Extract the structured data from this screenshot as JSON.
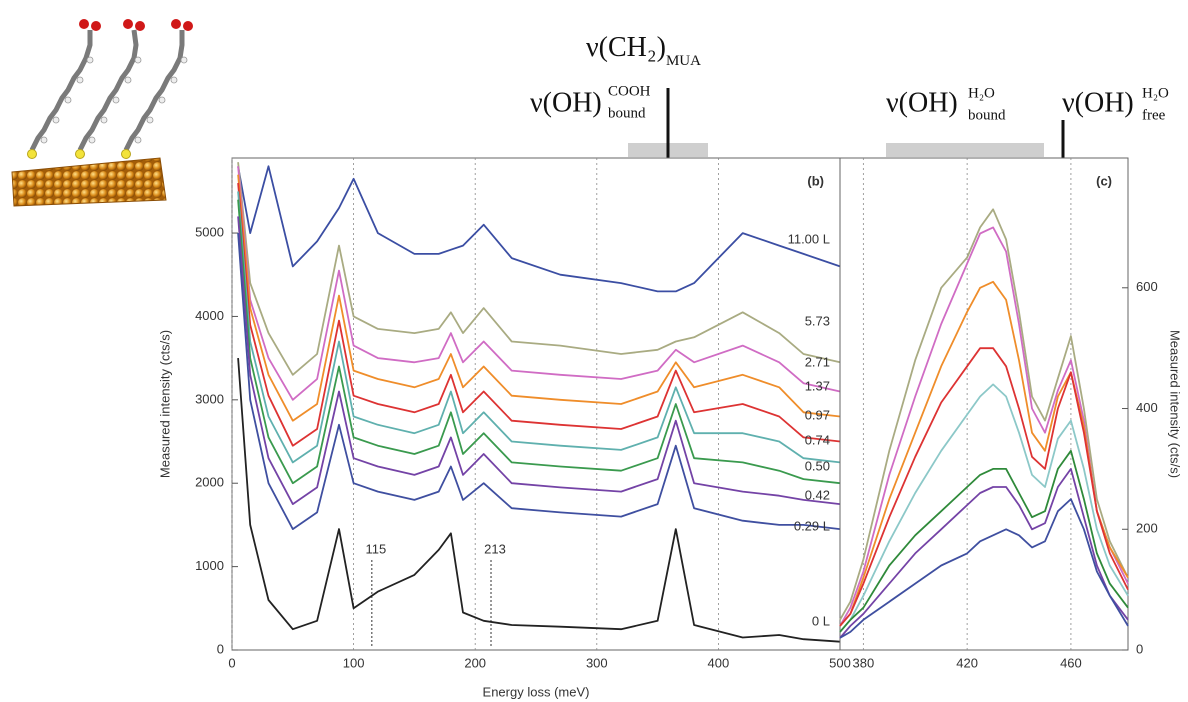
{
  "chart_data": [
    {
      "type": "line",
      "panel_label": "(b)",
      "x_label": "Energy loss (meV)",
      "y_label": "Measured intensity (cts/s)",
      "xlim": [
        0,
        500
      ],
      "ylim": [
        0,
        5900
      ],
      "xticks": [
        0,
        100,
        200,
        300,
        400,
        500
      ],
      "yticks": [
        0,
        1000,
        2000,
        3000,
        4000,
        5000
      ],
      "xgrid": true,
      "yaxis_side": "left",
      "marker_lines": [
        115,
        213
      ],
      "x": [
        5,
        15,
        30,
        50,
        70,
        88,
        100,
        120,
        150,
        170,
        180,
        190,
        207,
        230,
        270,
        320,
        350,
        365,
        380,
        420,
        450,
        470,
        500
      ],
      "series": [
        {
          "name": "11.00 L",
          "color": "#3b4ea3",
          "values": [
            5800,
            5000,
            5800,
            4600,
            4900,
            5300,
            5650,
            5000,
            4750,
            4750,
            4800,
            4850,
            5100,
            4700,
            4500,
            4400,
            4300,
            4300,
            4400,
            5000,
            4850,
            4750,
            4600
          ]
        },
        {
          "name": "5.73",
          "color": "#a9ab82",
          "values": [
            5850,
            4400,
            3800,
            3300,
            3550,
            4850,
            4000,
            3850,
            3800,
            3850,
            4050,
            3800,
            4100,
            3700,
            3650,
            3550,
            3600,
            3700,
            3750,
            4050,
            3800,
            3550,
            3450
          ]
        },
        {
          "name": "2.71",
          "color": "#d06cc4",
          "values": [
            5800,
            4200,
            3500,
            3000,
            3250,
            4550,
            3650,
            3500,
            3450,
            3500,
            3800,
            3450,
            3700,
            3350,
            3300,
            3250,
            3350,
            3600,
            3450,
            3650,
            3450,
            3200,
            3100
          ]
        },
        {
          "name": "1.37",
          "color": "#ef8d2a",
          "values": [
            5700,
            4100,
            3300,
            2750,
            2950,
            4250,
            3350,
            3250,
            3150,
            3250,
            3550,
            3150,
            3400,
            3050,
            3000,
            2950,
            3100,
            3450,
            3150,
            3300,
            3150,
            2850,
            2800
          ]
        },
        {
          "name": "0.97",
          "color": "#dd3333",
          "values": [
            5600,
            3900,
            3050,
            2450,
            2650,
            3950,
            3050,
            2950,
            2850,
            2950,
            3300,
            2850,
            3100,
            2750,
            2700,
            2650,
            2800,
            3350,
            2850,
            2950,
            2800,
            2550,
            2500
          ]
        },
        {
          "name": "0.74",
          "color": "#5fb0ae",
          "values": [
            5500,
            3700,
            2800,
            2250,
            2450,
            3700,
            2800,
            2700,
            2600,
            2700,
            3100,
            2600,
            2850,
            2500,
            2450,
            2400,
            2550,
            3150,
            2600,
            2600,
            2500,
            2300,
            2250
          ]
        },
        {
          "name": "0.50",
          "color": "#3a9a4e",
          "values": [
            5400,
            3500,
            2550,
            2000,
            2200,
            3400,
            2550,
            2450,
            2350,
            2450,
            2850,
            2350,
            2600,
            2250,
            2200,
            2150,
            2300,
            2950,
            2300,
            2250,
            2150,
            2050,
            2000
          ]
        },
        {
          "name": "0.42",
          "color": "#7443a6",
          "values": [
            5200,
            3300,
            2300,
            1750,
            1950,
            3100,
            2300,
            2200,
            2100,
            2200,
            2550,
            2100,
            2350,
            2000,
            1950,
            1900,
            2050,
            2750,
            2000,
            1900,
            1850,
            1800,
            1750
          ]
        },
        {
          "name": "0.29 L",
          "color": "#3f4fa0",
          "values": [
            5000,
            3000,
            2000,
            1450,
            1650,
            2700,
            2000,
            1900,
            1800,
            1900,
            2200,
            1800,
            2000,
            1700,
            1650,
            1600,
            1750,
            2450,
            1700,
            1550,
            1500,
            1500,
            1450
          ]
        },
        {
          "name": "0 L",
          "color": "#222222",
          "values": [
            3500,
            1500,
            600,
            250,
            350,
            1450,
            500,
            700,
            900,
            1200,
            1400,
            450,
            350,
            300,
            280,
            250,
            350,
            1450,
            300,
            150,
            180,
            130,
            100
          ]
        }
      ]
    },
    {
      "type": "line",
      "panel_label": "(c)",
      "y_label": "Measured intensity (cts/s)",
      "xlim": [
        371,
        482
      ],
      "ylim": [
        0,
        815
      ],
      "xticks": [
        380,
        420,
        460
      ],
      "yticks": [
        0,
        200,
        400,
        600
      ],
      "xgrid": true,
      "yaxis_side": "right",
      "x": [
        371,
        375,
        380,
        390,
        400,
        410,
        420,
        425,
        430,
        435,
        440,
        445,
        450,
        455,
        460,
        465,
        470,
        475,
        482
      ],
      "series": [
        {
          "color": "#a9ab82",
          "values": [
            50,
            80,
            150,
            330,
            480,
            600,
            650,
            700,
            730,
            680,
            560,
            420,
            380,
            450,
            520,
            400,
            250,
            180,
            120
          ]
        },
        {
          "color": "#d06cc4",
          "values": [
            40,
            70,
            130,
            290,
            420,
            540,
            640,
            690,
            700,
            660,
            540,
            400,
            360,
            430,
            480,
            380,
            230,
            170,
            110
          ]
        },
        {
          "color": "#ef8d2a",
          "values": [
            40,
            60,
            120,
            250,
            360,
            470,
            560,
            600,
            610,
            580,
            480,
            360,
            330,
            420,
            460,
            370,
            230,
            170,
            120
          ]
        },
        {
          "color": "#dd3333",
          "values": [
            40,
            60,
            110,
            220,
            320,
            410,
            470,
            500,
            500,
            470,
            400,
            320,
            300,
            400,
            460,
            360,
            230,
            160,
            100
          ]
        },
        {
          "color": "#8cc8c8",
          "values": [
            30,
            50,
            90,
            180,
            260,
            330,
            390,
            420,
            440,
            420,
            360,
            290,
            270,
            350,
            380,
            300,
            200,
            140,
            90
          ]
        },
        {
          "color": "#2f8a3a",
          "values": [
            30,
            50,
            70,
            140,
            190,
            230,
            270,
            290,
            300,
            300,
            260,
            220,
            230,
            300,
            330,
            250,
            160,
            110,
            70
          ]
        },
        {
          "color": "#7443a6",
          "values": [
            20,
            40,
            60,
            110,
            160,
            200,
            240,
            260,
            270,
            270,
            240,
            200,
            210,
            270,
            300,
            220,
            140,
            90,
            50
          ]
        },
        {
          "color": "#3f4fa0",
          "values": [
            20,
            30,
            50,
            80,
            110,
            140,
            160,
            180,
            190,
            200,
            190,
            170,
            180,
            230,
            250,
            200,
            130,
            90,
            40
          ]
        }
      ]
    }
  ],
  "annotations": [
    {
      "base": "ν(CH₂)",
      "sub": "MUA"
    },
    {
      "base": "ν(OH)",
      "sup": "COOH",
      "sub": "bound"
    },
    {
      "base": "ν(OH)",
      "sup": "H₂O",
      "sub": "bound"
    },
    {
      "base": "ν(OH)",
      "sup": "H₂O",
      "sub": "free"
    }
  ]
}
